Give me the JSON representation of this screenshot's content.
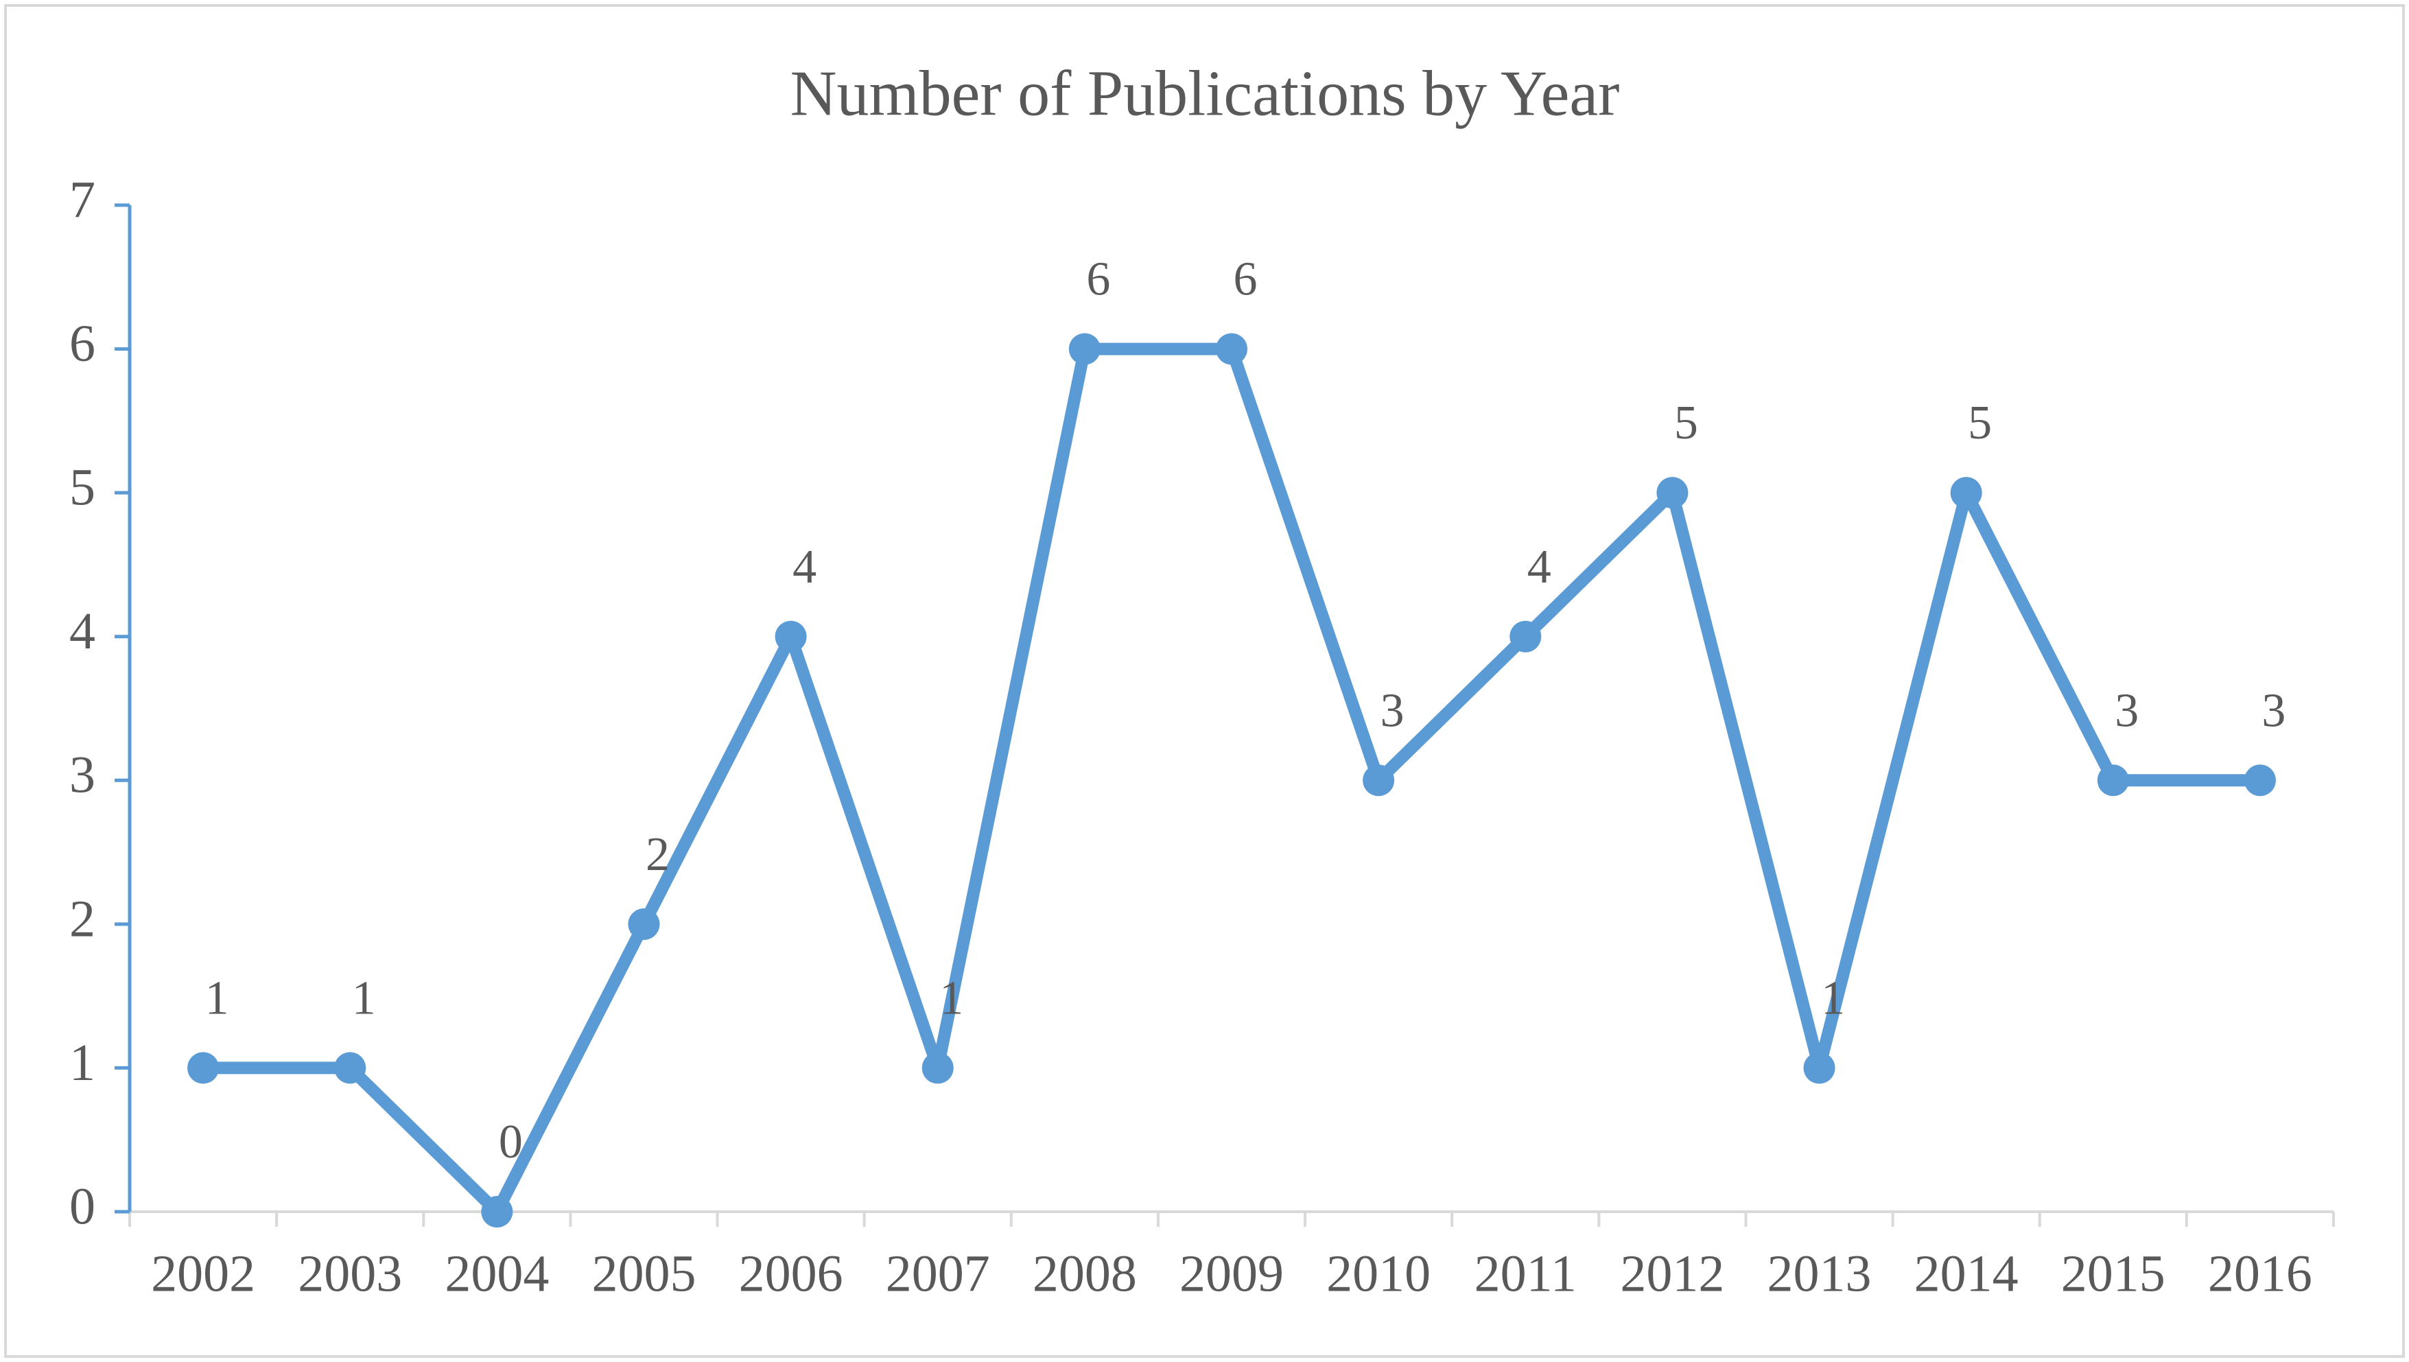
{
  "chart_data": {
    "type": "line",
    "title": "Number of Publications by Year",
    "categories": [
      "2002",
      "2003",
      "2004",
      "2005",
      "2006",
      "2007",
      "2008",
      "2009",
      "2010",
      "2011",
      "2012",
      "2013",
      "2014",
      "2015",
      "2016"
    ],
    "values": [
      1,
      1,
      0,
      2,
      4,
      1,
      6,
      6,
      3,
      4,
      5,
      1,
      5,
      3,
      3
    ],
    "color": "#5b9bd5",
    "ylim": [
      0,
      7
    ],
    "yticks": [
      0,
      1,
      2,
      3,
      4,
      5,
      6,
      7
    ],
    "grid": false
  }
}
